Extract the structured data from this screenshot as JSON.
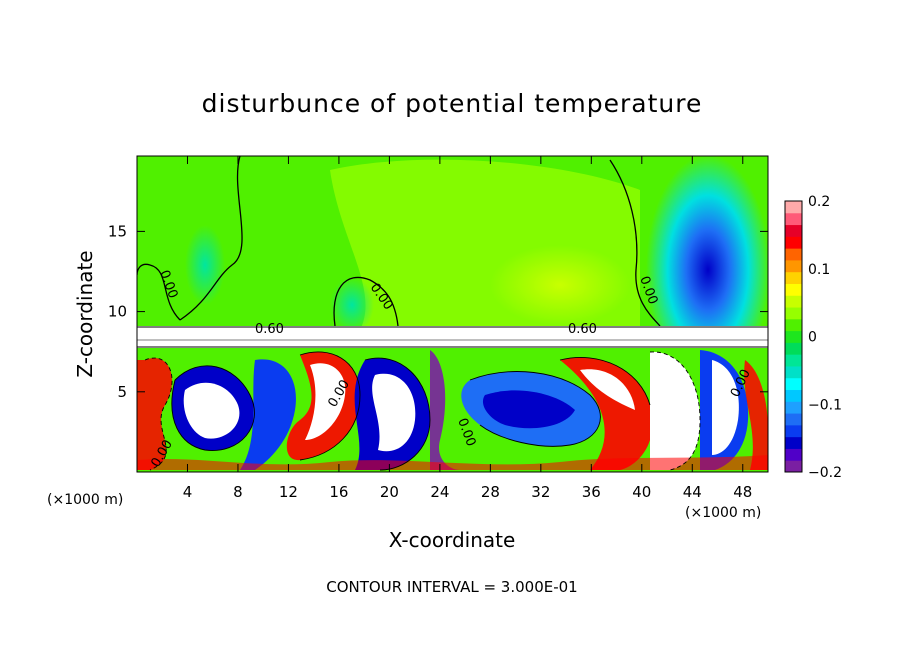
{
  "chart_data": {
    "type": "heatmap",
    "title": "disturbunce of potential temperature",
    "xlabel": "X-coordinate",
    "ylabel": "Z-coordinate",
    "x_unit": "(×1000 m)",
    "y_unit": "(×1000 m)",
    "xlim": [
      0,
      50
    ],
    "ylim": [
      0,
      19.7
    ],
    "x_ticks": [
      4,
      8,
      12,
      16,
      20,
      24,
      28,
      32,
      36,
      40,
      44,
      48
    ],
    "y_ticks": [
      5,
      10,
      15
    ],
    "colorbar": {
      "range": [
        -0.2,
        0.2
      ],
      "ticks": [
        -0.2,
        -0.1,
        0,
        0.1,
        0.2
      ],
      "tick_labels": [
        "−0.2",
        "−0.1",
        "0",
        "0.1",
        "0.2"
      ],
      "colors": [
        "#7a1fa2",
        "#5000c8",
        "#0000c8",
        "#0a3cf0",
        "#1e6ef5",
        "#1ea0ff",
        "#00c8ff",
        "#00ffff",
        "#00e0c8",
        "#00e696",
        "#00dc5a",
        "#1ee61e",
        "#50f000",
        "#96ff00",
        "#c8ff00",
        "#ffff00",
        "#ffd200",
        "#ff9600",
        "#ff6400",
        "#ff0000",
        "#e60028",
        "#ff5a78",
        "#ffaaaa"
      ]
    },
    "contour_labels": [
      "0.00",
      "0.00",
      "0.00",
      "0.00",
      "0.00",
      "0.00",
      "0.00",
      "0.60",
      "0.60"
    ],
    "footer": "CONTOUR INTERVAL = 3.000E-01"
  }
}
